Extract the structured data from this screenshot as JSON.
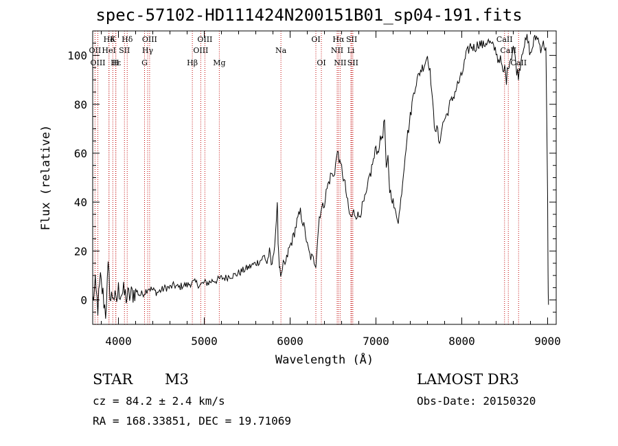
{
  "chart_data": {
    "type": "line",
    "title": "spec-57102-HD111424N200151B01_sp04-191.fits",
    "xlabel": "Wavelength (Å)",
    "ylabel": "Flux (relative)",
    "xlim": [
      3700,
      9100
    ],
    "ylim": [
      -10,
      110
    ],
    "x_ticks": [
      4000,
      5000,
      6000,
      7000,
      8000,
      9000
    ],
    "y_ticks": [
      0,
      20,
      40,
      60,
      80,
      100
    ],
    "grid": false,
    "series": [
      {
        "name": "flux",
        "x": [
          3700,
          3730,
          3760,
          3790,
          3820,
          3850,
          3880,
          3910,
          3940,
          3970,
          4000,
          4050,
          4100,
          4150,
          4200,
          4250,
          4300,
          4350,
          4400,
          4450,
          4500,
          4550,
          4600,
          4650,
          4700,
          4750,
          4800,
          4850,
          4900,
          4950,
          5000,
          5050,
          5100,
          5150,
          5200,
          5250,
          5300,
          5350,
          5400,
          5450,
          5500,
          5550,
          5600,
          5650,
          5700,
          5730,
          5760,
          5780,
          5800,
          5830,
          5850,
          5860,
          5870,
          5880,
          5900,
          5920,
          5950,
          5980,
          6000,
          6030,
          6060,
          6080,
          6100,
          6120,
          6140,
          6160,
          6180,
          6200,
          6230,
          6260,
          6280,
          6300,
          6320,
          6340,
          6360,
          6380,
          6400,
          6420,
          6440,
          6460,
          6480,
          6500,
          6520,
          6540,
          6560,
          6580,
          6600,
          6620,
          6640,
          6660,
          6680,
          6700,
          6720,
          6740,
          6760,
          6780,
          6800,
          6820,
          6840,
          6860,
          6880,
          6900,
          6920,
          6940,
          6960,
          6980,
          7000,
          7020,
          7040,
          7060,
          7080,
          7100,
          7120,
          7140,
          7160,
          7180,
          7200,
          7220,
          7240,
          7260,
          7280,
          7300,
          7320,
          7340,
          7360,
          7380,
          7400,
          7420,
          7440,
          7460,
          7480,
          7500,
          7520,
          7540,
          7560,
          7580,
          7600,
          7620,
          7640,
          7660,
          7680,
          7700,
          7720,
          7740,
          7760,
          7780,
          7800,
          7830,
          7860,
          7890,
          7920,
          7950,
          7980,
          8000,
          8050,
          8100,
          8150,
          8200,
          8250,
          8300,
          8350,
          8400,
          8420,
          8440,
          8460,
          8480,
          8500,
          8520,
          8540,
          8560,
          8580,
          8600,
          8620,
          8640,
          8660,
          8680,
          8700,
          8720,
          8740,
          8760,
          8780,
          8800,
          8820,
          8840,
          8860,
          8880,
          8900,
          8920,
          8940,
          8960,
          8980,
          9000,
          9005,
          9010
        ],
        "values": [
          0,
          5,
          -3,
          8,
          2,
          -5,
          12,
          0,
          3,
          -2,
          4,
          3,
          1,
          2,
          4,
          2,
          3,
          5,
          4,
          3,
          4,
          5,
          5,
          6,
          5,
          6,
          6,
          7,
          7,
          6,
          7,
          7,
          8,
          8,
          9,
          9,
          10,
          10,
          11,
          12,
          13,
          14,
          15,
          16,
          18,
          15,
          20,
          14,
          16,
          28,
          38,
          25,
          17,
          12,
          9,
          14,
          15,
          20,
          22,
          25,
          29,
          32,
          34,
          36,
          33,
          30,
          27,
          22,
          18,
          17,
          16,
          15,
          25,
          34,
          37,
          38,
          40,
          44,
          47,
          49,
          52,
          50,
          53,
          58,
          61,
          55,
          54,
          50,
          47,
          42,
          37,
          34,
          34,
          36,
          35,
          35,
          34,
          36,
          38,
          40,
          42,
          45,
          50,
          52,
          56,
          58,
          63,
          60,
          64,
          66,
          68,
          74,
          52,
          58,
          45,
          43,
          40,
          36,
          35,
          33,
          37,
          45,
          52,
          60,
          66,
          70,
          75,
          80,
          85,
          88,
          90,
          92,
          94,
          95,
          96,
          98,
          100,
          96,
          90,
          80,
          72,
          70,
          69,
          62,
          70,
          72,
          74,
          76,
          80,
          82,
          85,
          88,
          90,
          92,
          100,
          104,
          103,
          105,
          104,
          106,
          104,
          102,
          98,
          99,
          97,
          92,
          95,
          90,
          96,
          98,
          100,
          104,
          99,
          94,
          92,
          96,
          101,
          104,
          105,
          107,
          104,
          100,
          103,
          106,
          107,
          108,
          105,
          103,
          105,
          104,
          103,
          40,
          10,
          -2
        ]
      }
    ],
    "spectral_lines": [
      {
        "label": "Hδ",
        "x": 3890,
        "row": 1
      },
      {
        "label": "OII",
        "x": 3727,
        "row": 2
      },
      {
        "label": "OIII",
        "x": 3760,
        "row": 3
      },
      {
        "label": "K",
        "x": 3934,
        "row": 1
      },
      {
        "label": "HeI",
        "x": 3889,
        "row": 2
      },
      {
        "label": "Hε",
        "x": 3970,
        "row": 3
      },
      {
        "label": "SII",
        "x": 4070,
        "row": 2
      },
      {
        "label": "H",
        "x": 3968,
        "row": 3
      },
      {
        "label": "Hδ",
        "x": 4102,
        "row": 1
      },
      {
        "label": "OIII",
        "x": 4363,
        "row": 1
      },
      {
        "label": "Hγ",
        "x": 4340,
        "row": 2
      },
      {
        "label": "G",
        "x": 4304,
        "row": 3
      },
      {
        "label": "Hβ",
        "x": 4861,
        "row": 3
      },
      {
        "label": "OIII",
        "x": 5007,
        "row": 1
      },
      {
        "label": "OIII",
        "x": 4959,
        "row": 2
      },
      {
        "label": "Mg",
        "x": 5175,
        "row": 3
      },
      {
        "label": "Na",
        "x": 5893,
        "row": 2
      },
      {
        "label": "OI",
        "x": 6300,
        "row": 1
      },
      {
        "label": "OI",
        "x": 6364,
        "row": 3
      },
      {
        "label": "Hα",
        "x": 6563,
        "row": 1
      },
      {
        "label": "SII",
        "x": 6717,
        "row": 1
      },
      {
        "label": "NII",
        "x": 6548,
        "row": 2
      },
      {
        "label": "Li",
        "x": 6708,
        "row": 2
      },
      {
        "label": "NII",
        "x": 6583,
        "row": 3
      },
      {
        "label": "SII",
        "x": 6731,
        "row": 3
      },
      {
        "label": "CaII",
        "x": 8498,
        "row": 1
      },
      {
        "label": "CaII",
        "x": 8542,
        "row": 2
      },
      {
        "label": "CaII",
        "x": 8662,
        "row": 3
      }
    ],
    "line_color": "#c00000"
  },
  "info": {
    "object_type": "STAR",
    "subclass": "M3",
    "survey": "LAMOST DR3",
    "cz": "cz = 84.2 ± 2.4 km/s",
    "obs_date": "Obs-Date: 20150320",
    "coords": "RA = 168.33851, DEC =  19.71069"
  }
}
